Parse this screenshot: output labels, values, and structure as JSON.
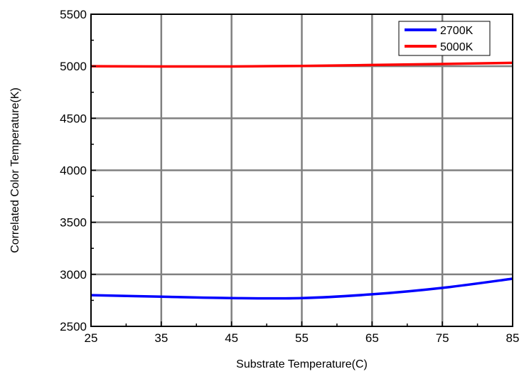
{
  "chart_data": {
    "type": "line",
    "title": "",
    "xlabel": "Substrate Temperature(C)",
    "ylabel": "Correlated Color Temperature(K)",
    "xlim": [
      25,
      85
    ],
    "ylim": [
      2500,
      5500
    ],
    "xticks": [
      25,
      35,
      45,
      55,
      65,
      75,
      85
    ],
    "yticks": [
      2500,
      3000,
      3500,
      4000,
      4500,
      5000,
      5500
    ],
    "xtick_labels": [
      "25",
      "35",
      "45",
      "55",
      "65",
      "75",
      "85"
    ],
    "ytick_labels": [
      "2500",
      "3000",
      "3500",
      "4000",
      "4500",
      "5000",
      "5500"
    ],
    "grid": true,
    "legend_position": "top-right",
    "x": [
      25,
      35,
      45,
      55,
      65,
      75,
      85
    ],
    "series": [
      {
        "name": "2700K",
        "color": "#0000ff",
        "values": [
          2800,
          2785,
          2772,
          2772,
          2808,
          2870,
          2958
        ]
      },
      {
        "name": "5000K",
        "color": "#ff0000",
        "values": [
          5000,
          4998,
          4998,
          5003,
          5012,
          5022,
          5033
        ]
      }
    ]
  }
}
